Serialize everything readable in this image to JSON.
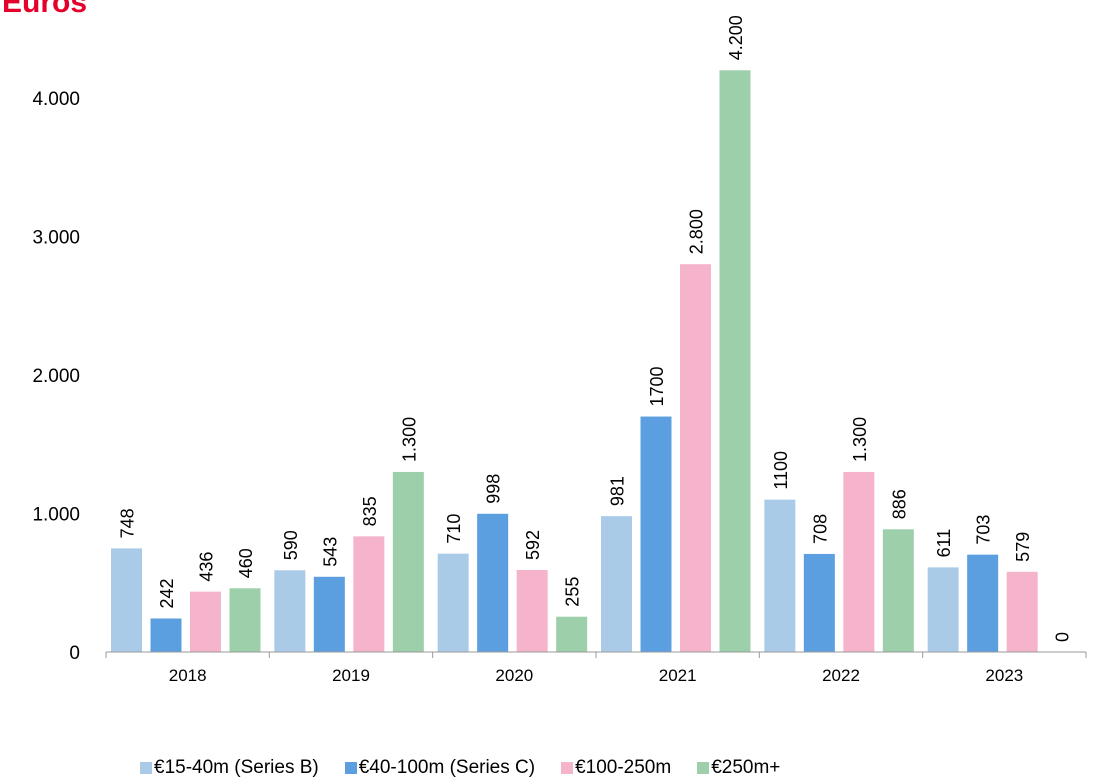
{
  "title": "Euros",
  "chart_data": {
    "type": "bar",
    "title": "Euros",
    "categories": [
      "2018",
      "2019",
      "2020",
      "2021",
      "2022",
      "2023"
    ],
    "series": [
      {
        "name": "€15-40m (Series B)",
        "color": "#a9cbe8",
        "values": [
          748,
          590,
          710,
          981,
          1100,
          611
        ],
        "labels": [
          "748",
          "590",
          "710",
          "981",
          "1100",
          "611"
        ]
      },
      {
        "name": "€40-100m (Series C)",
        "color": "#5b9fe0",
        "values": [
          242,
          543,
          998,
          1700,
          708,
          703
        ],
        "labels": [
          "242",
          "543",
          "998",
          "1700",
          "708",
          "703"
        ]
      },
      {
        "name": "€100-250m",
        "color": "#f5b3cc",
        "values": [
          436,
          835,
          592,
          2800,
          1300,
          579
        ],
        "labels": [
          "436",
          "835",
          "592",
          "2.800",
          "1.300",
          "579"
        ]
      },
      {
        "name": "€250m+",
        "color": "#9dcfaa",
        "values": [
          460,
          1300,
          255,
          4200,
          886,
          0
        ],
        "labels": [
          "460",
          "1.300",
          "255",
          "4.200",
          "886",
          "0"
        ]
      }
    ],
    "y_ticks": [
      0,
      1000,
      2000,
      3000,
      4000
    ],
    "y_tick_labels": [
      "0",
      "1.000",
      "2.000",
      "3.000",
      "4.000"
    ],
    "ylim": [
      0,
      4300
    ],
    "xlabel": "",
    "ylabel": "",
    "grid": false,
    "legend_position": "bottom"
  }
}
